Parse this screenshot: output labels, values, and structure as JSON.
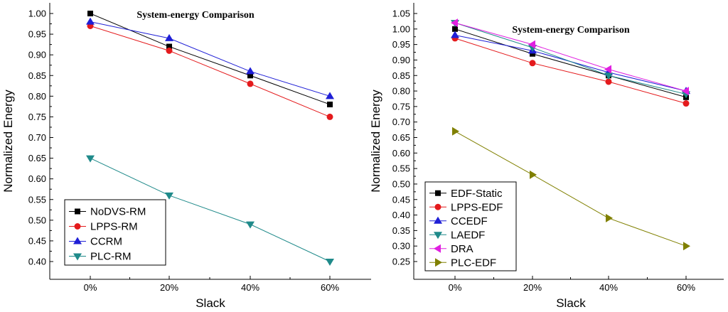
{
  "chart_data": [
    {
      "type": "line",
      "title": "System-energy Comparison",
      "xlabel": "Slack",
      "ylabel": "Normalized Energy",
      "categories": [
        "0%",
        "20%",
        "40%",
        "60%"
      ],
      "ylim": [
        0.4,
        1.0
      ],
      "yticks": [
        "0.40",
        "0.45",
        "0.50",
        "0.55",
        "0.60",
        "0.65",
        "0.70",
        "0.75",
        "0.80",
        "0.85",
        "0.90",
        "0.95",
        "1.00"
      ],
      "legend_position": "bottom-left",
      "series": [
        {
          "name": "NoDVS-RM",
          "values": [
            1.0,
            0.92,
            0.85,
            0.78
          ],
          "color": "#000000",
          "marker": "square"
        },
        {
          "name": "LPPS-RM",
          "values": [
            0.97,
            0.91,
            0.83,
            0.75
          ],
          "color": "#e41a1c",
          "marker": "circle"
        },
        {
          "name": "CCRM",
          "values": [
            0.98,
            0.94,
            0.86,
            0.8
          ],
          "color": "#1f1fd6",
          "marker": "triangle-up"
        },
        {
          "name": "PLC-RM",
          "values": [
            0.65,
            0.56,
            0.49,
            0.4
          ],
          "color": "#1f8a8a",
          "marker": "triangle-down"
        }
      ]
    },
    {
      "type": "line",
      "title": "System-energy Comparison",
      "xlabel": "Slack",
      "ylabel": "Normalized Energy",
      "categories": [
        "0%",
        "20%",
        "40%",
        "60%"
      ],
      "ylim": [
        0.25,
        1.05
      ],
      "yticks": [
        "0.25",
        "0.30",
        "0.35",
        "0.40",
        "0.45",
        "0.50",
        "0.55",
        "0.60",
        "0.65",
        "0.70",
        "0.75",
        "0.80",
        "0.85",
        "0.90",
        "0.95",
        "1.00",
        "1.05"
      ],
      "legend_position": "bottom-left",
      "series": [
        {
          "name": "EDF-Static",
          "values": [
            1.0,
            0.92,
            0.85,
            0.78
          ],
          "color": "#000000",
          "marker": "square"
        },
        {
          "name": "LPPS-EDF",
          "values": [
            0.97,
            0.89,
            0.83,
            0.76
          ],
          "color": "#e41a1c",
          "marker": "circle"
        },
        {
          "name": "CCEDF",
          "values": [
            0.98,
            0.93,
            0.86,
            0.8
          ],
          "color": "#1f1fd6",
          "marker": "triangle-up"
        },
        {
          "name": "LAEDF",
          "values": [
            1.02,
            0.94,
            0.85,
            0.79
          ],
          "color": "#1f8a8a",
          "marker": "triangle-down"
        },
        {
          "name": "DRA",
          "values": [
            1.02,
            0.95,
            0.87,
            0.8
          ],
          "color": "#e020e0",
          "marker": "triangle-left"
        },
        {
          "name": "PLC-EDF",
          "values": [
            0.67,
            0.53,
            0.39,
            0.3
          ],
          "color": "#808000",
          "marker": "triangle-right"
        }
      ]
    }
  ]
}
